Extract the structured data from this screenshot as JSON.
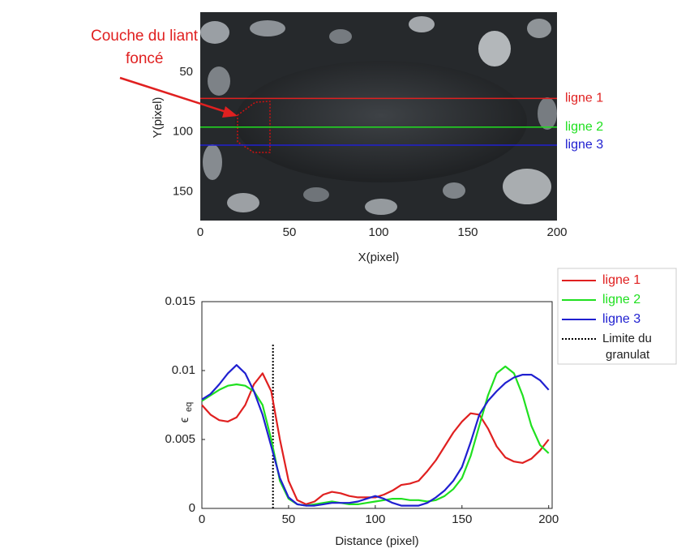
{
  "chart_data": [
    {
      "type": "image",
      "annotation_lines": [
        "Couche  du liant",
        "foncé"
      ],
      "x_label": "X(pixel)",
      "y_label": "Y(pixel)",
      "xlim": [
        0,
        200
      ],
      "xticks": [
        0,
        50,
        100,
        150,
        200
      ],
      "ylim": [
        0,
        174
      ],
      "yticks": [
        50,
        100,
        150
      ],
      "y_inverted": true,
      "series": [
        {
          "name": "ligne 1",
          "color": "#e02020",
          "y": 72
        },
        {
          "name": "ligne 2",
          "color": "#20e020",
          "y": 96
        },
        {
          "name": "ligne 3",
          "color": "#2020d0",
          "y": 111
        }
      ]
    },
    {
      "type": "line",
      "x_label": "Distance (pixel)",
      "y_label": "ϵ",
      "y_label_subscript": "eq",
      "xlim": [
        0,
        202
      ],
      "xticks": [
        0,
        50,
        100,
        150,
        200
      ],
      "ylim": [
        0,
        0.015
      ],
      "yticks": [
        0,
        0.005,
        0.01,
        0.015
      ],
      "x": [
        0,
        5,
        10,
        15,
        20,
        25,
        30,
        35,
        40,
        45,
        50,
        55,
        60,
        65,
        70,
        75,
        80,
        85,
        90,
        95,
        100,
        105,
        110,
        115,
        120,
        125,
        130,
        135,
        140,
        145,
        150,
        155,
        160,
        165,
        170,
        175,
        180,
        185,
        190,
        195,
        200
      ],
      "series": [
        {
          "name": "ligne 1",
          "color": "#e02020",
          "values": [
            0.0075,
            0.0068,
            0.0064,
            0.0063,
            0.0066,
            0.0075,
            0.009,
            0.0098,
            0.0085,
            0.005,
            0.002,
            0.0006,
            0.0003,
            0.0005,
            0.001,
            0.0012,
            0.0011,
            0.0009,
            0.0008,
            0.0008,
            0.0008,
            0.001,
            0.0013,
            0.0017,
            0.0018,
            0.002,
            0.0027,
            0.0035,
            0.0045,
            0.0055,
            0.0063,
            0.0069,
            0.0068,
            0.0058,
            0.0045,
            0.0037,
            0.0034,
            0.0033,
            0.0036,
            0.0042,
            0.005
          ]
        },
        {
          "name": "ligne 2",
          "color": "#20e020",
          "values": [
            0.0078,
            0.0082,
            0.0086,
            0.0089,
            0.009,
            0.0089,
            0.0085,
            0.0075,
            0.005,
            0.002,
            0.0007,
            0.0003,
            0.0002,
            0.0003,
            0.0004,
            0.0005,
            0.0004,
            0.0003,
            0.0003,
            0.0004,
            0.0005,
            0.0006,
            0.0007,
            0.0007,
            0.0006,
            0.0006,
            0.0005,
            0.0006,
            0.0009,
            0.0014,
            0.0022,
            0.0038,
            0.006,
            0.0082,
            0.0098,
            0.0103,
            0.0098,
            0.0082,
            0.006,
            0.0046,
            0.004
          ]
        },
        {
          "name": "ligne 3",
          "color": "#2020d0",
          "values": [
            0.0079,
            0.0083,
            0.009,
            0.0098,
            0.0104,
            0.0098,
            0.0085,
            0.0068,
            0.0045,
            0.0022,
            0.0008,
            0.0003,
            0.0002,
            0.0002,
            0.0003,
            0.0004,
            0.0004,
            0.0004,
            0.0005,
            0.0007,
            0.0009,
            0.0007,
            0.0004,
            0.0002,
            0.0002,
            0.0002,
            0.0004,
            0.0008,
            0.0013,
            0.002,
            0.003,
            0.0048,
            0.0068,
            0.0078,
            0.0085,
            0.0091,
            0.0095,
            0.0097,
            0.0097,
            0.0093,
            0.0086
          ]
        }
      ],
      "boundary": {
        "label_lines": [
          "Limite du",
          "granulat"
        ],
        "x": 41,
        "ymax": 0.012,
        "color": "#000000"
      },
      "legend": "outside-right"
    }
  ]
}
